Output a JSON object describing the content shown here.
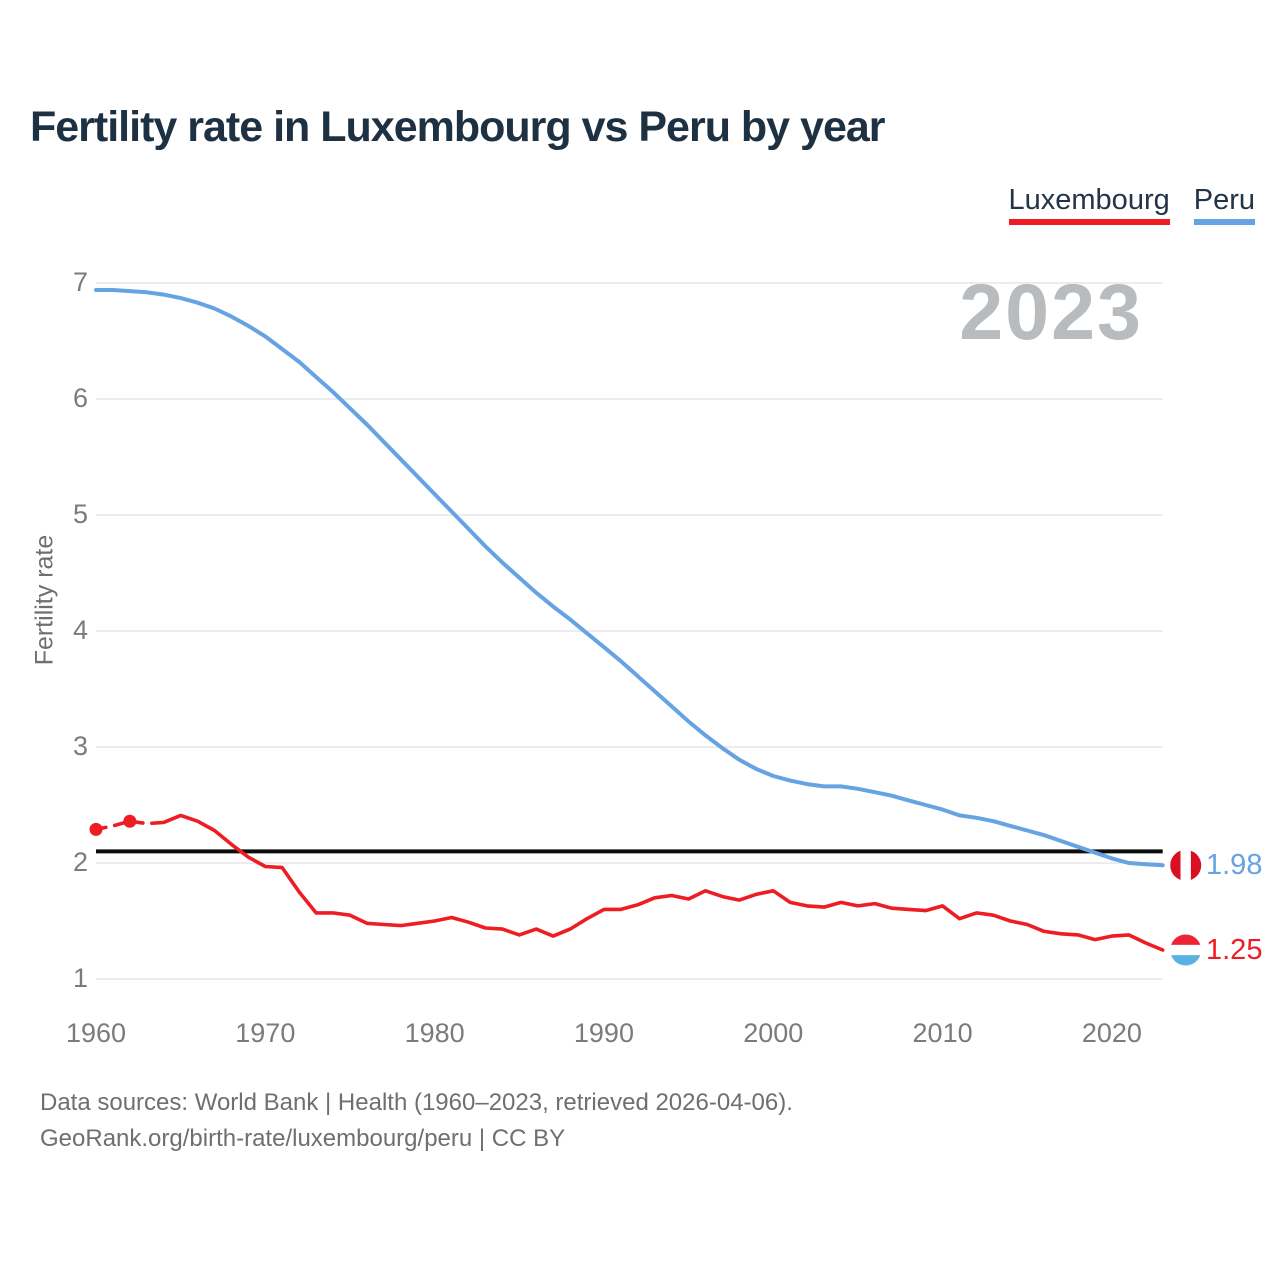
{
  "header": {
    "title": "Fertility rate in Luxembourg vs Peru by year"
  },
  "legend": [
    {
      "label": "Luxembourg",
      "color": "#ee1d23"
    },
    {
      "label": "Peru",
      "color": "#66a3e3"
    }
  ],
  "watermark": "2023",
  "footer": {
    "line1": "Data sources: World Bank | Health (1960–2023, retrieved 2026-04-06).",
    "line2": "GeoRank.org/birth-rate/luxembourg/peru | CC BY"
  },
  "chart_data": {
    "type": "line",
    "title": "Fertility rate in Luxembourg vs Peru by year",
    "xlabel": "",
    "ylabel": "Fertility rate",
    "ylim": [
      1,
      7
    ],
    "yticks": [
      1,
      2,
      3,
      4,
      5,
      6,
      7
    ],
    "xticks": [
      1960,
      1970,
      1980,
      1990,
      2000,
      2010,
      2020
    ],
    "grid": "horizontal",
    "legend_position": "top-right",
    "x": [
      1960,
      1961,
      1962,
      1963,
      1964,
      1965,
      1966,
      1967,
      1968,
      1969,
      1970,
      1971,
      1972,
      1973,
      1974,
      1975,
      1976,
      1977,
      1978,
      1979,
      1980,
      1981,
      1982,
      1983,
      1984,
      1985,
      1986,
      1987,
      1988,
      1989,
      1990,
      1991,
      1992,
      1993,
      1994,
      1995,
      1996,
      1997,
      1998,
      1999,
      2000,
      2001,
      2002,
      2003,
      2004,
      2005,
      2006,
      2007,
      2008,
      2009,
      2010,
      2011,
      2012,
      2013,
      2014,
      2015,
      2016,
      2017,
      2018,
      2019,
      2020,
      2021,
      2022,
      2023
    ],
    "series": [
      {
        "name": "Luxembourg",
        "color": "#ee1d23",
        "end_label": "1.25",
        "dashed_until_year": 1964,
        "marker_years": [
          1960,
          1962
        ],
        "flag": {
          "name": "luxembourg-flag",
          "stripes": "horizontal",
          "colors": [
            "#ee2436",
            "#ffffff",
            "#5ab2e2"
          ]
        },
        "values": [
          2.29,
          2.32,
          2.36,
          2.34,
          2.35,
          2.41,
          2.36,
          2.28,
          2.16,
          2.05,
          1.97,
          1.96,
          1.75,
          1.57,
          1.57,
          1.55,
          1.48,
          1.47,
          1.46,
          1.48,
          1.5,
          1.53,
          1.49,
          1.44,
          1.43,
          1.38,
          1.43,
          1.37,
          1.43,
          1.52,
          1.6,
          1.6,
          1.64,
          1.7,
          1.72,
          1.69,
          1.76,
          1.71,
          1.68,
          1.73,
          1.76,
          1.66,
          1.63,
          1.62,
          1.66,
          1.63,
          1.65,
          1.61,
          1.6,
          1.59,
          1.63,
          1.52,
          1.57,
          1.55,
          1.5,
          1.47,
          1.41,
          1.39,
          1.38,
          1.34,
          1.37,
          1.38,
          1.31,
          1.25
        ]
      },
      {
        "name": "Peru",
        "color": "#66a3e3",
        "end_label": "1.98",
        "flag": {
          "name": "peru-flag",
          "stripes": "vertical",
          "colors": [
            "#d91023",
            "#ffffff",
            "#d91023"
          ]
        },
        "values": [
          6.94,
          6.94,
          6.93,
          6.92,
          6.9,
          6.87,
          6.83,
          6.78,
          6.71,
          6.63,
          6.54,
          6.43,
          6.32,
          6.19,
          6.06,
          5.92,
          5.78,
          5.63,
          5.48,
          5.33,
          5.18,
          5.03,
          4.88,
          4.73,
          4.59,
          4.46,
          4.33,
          4.21,
          4.1,
          3.98,
          3.86,
          3.74,
          3.61,
          3.48,
          3.35,
          3.22,
          3.1,
          2.99,
          2.89,
          2.81,
          2.75,
          2.71,
          2.68,
          2.66,
          2.66,
          2.64,
          2.61,
          2.58,
          2.54,
          2.5,
          2.46,
          2.41,
          2.39,
          2.36,
          2.32,
          2.28,
          2.24,
          2.19,
          2.14,
          2.09,
          2.04,
          2.0,
          1.99,
          1.98
        ]
      }
    ],
    "reference_line": {
      "value": 2.1,
      "color": "#0c0c0c"
    },
    "colors": {
      "grid": "#ececec",
      "tick_text": "#7b7b7b",
      "watermark": "#b9bcbf",
      "title_text": "#1e3142"
    }
  }
}
